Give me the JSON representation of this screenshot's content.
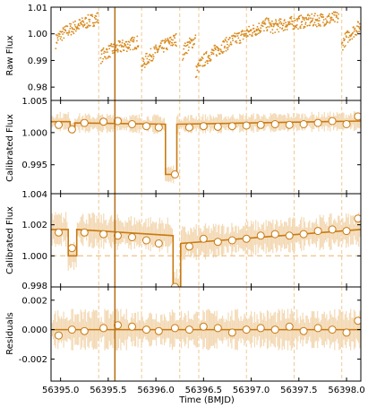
{
  "colors": {
    "main": "#c97a12",
    "scatter": "#d98a1c",
    "band": "#f3d9b4",
    "dashed": "#f0c890",
    "vline": "#b7741a",
    "axis": "#000000"
  },
  "chart_data": [
    {
      "type": "scatter",
      "panel": "raw",
      "title": "",
      "xlabel": "",
      "ylabel": "Raw Flux",
      "xlim": [
        56394.9,
        56398.15
      ],
      "ylim": [
        0.975,
        1.01
      ],
      "yticks": [
        "1.01",
        "1.00",
        "0.99",
        "0.98"
      ],
      "ytick_values": [
        1.01,
        1.0,
        0.99,
        0.98
      ],
      "segments": [
        {
          "x": [
            56394.95,
            56395.4
          ],
          "y": [
            0.997,
            1.006
          ]
        },
        {
          "x": [
            56395.42,
            56395.82
          ],
          "y": [
            0.991,
            0.997
          ]
        },
        {
          "x": [
            56395.85,
            56396.22
          ],
          "y": [
            0.987,
            0.998
          ]
        },
        {
          "x": [
            56396.28,
            56396.42
          ],
          "y": [
            0.992,
            0.998
          ]
        },
        {
          "x": [
            56396.42,
            56397.2
          ],
          "y": [
            0.985,
            1.004
          ]
        },
        {
          "x": [
            56397.2,
            56397.92
          ],
          "y": [
            1.002,
            1.006
          ]
        },
        {
          "x": [
            56397.95,
            56398.15
          ],
          "y": [
            0.995,
            1.003
          ]
        }
      ],
      "grid": false
    },
    {
      "type": "line",
      "panel": "calibrated_1",
      "ylabel": "Calibrated Flux",
      "ylim": [
        0.9905,
        1.005
      ],
      "yticks": [
        "1.005",
        "1.000",
        "0.995"
      ],
      "ytick_values": [
        1.005,
        1.0,
        0.995
      ],
      "model": {
        "x": [
          56394.9,
          56395.1,
          56395.1,
          56395.15,
          56395.15,
          56396.1,
          56396.1,
          56396.22,
          56396.22,
          56398.15
        ],
        "y": [
          1.0017,
          1.0017,
          1.0007,
          1.0007,
          1.0015,
          1.0013,
          0.9935,
          0.9935,
          1.0013,
          1.0018
        ]
      },
      "binned": {
        "x": [
          56394.98,
          56395.12,
          56395.25,
          56395.45,
          56395.6,
          56395.75,
          56395.9,
          56396.03,
          56396.2,
          56396.35,
          56396.5,
          56396.65,
          56396.8,
          56396.95,
          56397.1,
          56397.25,
          56397.4,
          56397.55,
          56397.7,
          56397.85,
          56398.0,
          56398.12
        ],
        "y": [
          1.0012,
          1.0005,
          1.0015,
          1.0017,
          1.0018,
          1.0013,
          1.001,
          1.0008,
          0.9935,
          1.0008,
          1.001,
          1.0009,
          1.001,
          1.0011,
          1.0012,
          1.0013,
          1.0012,
          1.0013,
          1.0015,
          1.0018,
          1.0013,
          1.0025
        ]
      }
    },
    {
      "type": "line",
      "panel": "calibrated_2",
      "ylabel": "Calibrated Flux",
      "ylim": [
        0.998,
        1.004
      ],
      "yticks": [
        "1.004",
        "1.002",
        "1.000",
        "0.998"
      ],
      "ytick_values": [
        1.004,
        1.002,
        1.0,
        0.998
      ],
      "reference": 1.0,
      "model": {
        "x": [
          56394.9,
          56395.08,
          56395.08,
          56395.17,
          56395.17,
          56396.18,
          56396.18,
          56396.26,
          56396.26,
          56398.15
        ],
        "y": [
          1.0017,
          1.0017,
          1.0,
          1.0,
          1.0017,
          1.0013,
          0.998,
          0.998,
          1.0008,
          1.0017
        ]
      },
      "binned": {
        "x": [
          56394.98,
          56395.12,
          56395.25,
          56395.45,
          56395.6,
          56395.75,
          56395.9,
          56396.03,
          56396.2,
          56396.35,
          56396.5,
          56396.65,
          56396.8,
          56396.95,
          56397.1,
          56397.25,
          56397.4,
          56397.55,
          56397.7,
          56397.85,
          56398.0,
          56398.12
        ],
        "y": [
          1.0015,
          1.0005,
          1.0015,
          1.0014,
          1.0013,
          1.0012,
          1.001,
          1.0008,
          0.998,
          1.0006,
          1.0011,
          1.0009,
          1.001,
          1.0011,
          1.0013,
          1.0014,
          1.0013,
          1.0014,
          1.0016,
          1.0017,
          1.0016,
          1.0024
        ]
      }
    },
    {
      "type": "scatter",
      "panel": "residuals",
      "xlabel": "Time (BMJD)",
      "ylabel": "Residuals",
      "ylim": [
        -0.0035,
        0.0029
      ],
      "yticks": [
        "0.002",
        "0.000",
        "-0.002"
      ],
      "ytick_values": [
        0.002,
        0.0,
        -0.002
      ],
      "xticks": [
        "56395.0",
        "56395.5",
        "56396.0",
        "56396.5",
        "56397.0",
        "56397.5",
        "56398.0"
      ],
      "xtick_values": [
        56395.0,
        56395.5,
        56396.0,
        56396.5,
        56397.0,
        56397.5,
        56398.0
      ],
      "binned": {
        "x": [
          56394.98,
          56395.12,
          56395.25,
          56395.45,
          56395.6,
          56395.75,
          56395.9,
          56396.03,
          56396.2,
          56396.35,
          56396.5,
          56396.65,
          56396.8,
          56396.95,
          56397.1,
          56397.25,
          56397.4,
          56397.55,
          56397.7,
          56397.85,
          56398.0,
          56398.12
        ],
        "y": [
          -0.0004,
          0.0,
          -0.0001,
          0.0001,
          0.0003,
          0.0002,
          0.0,
          -0.0001,
          0.0001,
          0.0,
          0.0002,
          0.0001,
          -0.0002,
          0.0,
          0.0001,
          0.0,
          0.0002,
          -0.0001,
          0.0001,
          0.0,
          -0.0002,
          0.0006
        ]
      }
    }
  ],
  "vertical_marker": 56395.57,
  "dashed_x": [
    56395.4,
    56395.85,
    56396.25,
    56396.45,
    56396.95,
    56397.45,
    56397.95
  ]
}
